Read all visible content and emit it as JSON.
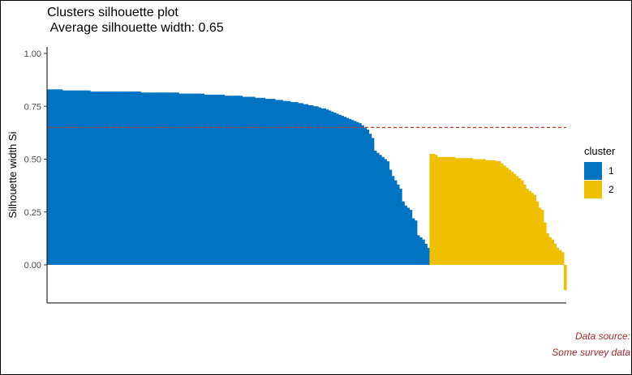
{
  "title_line1": "Clusters silhouette plot",
  "title_line2": " Average silhouette width: 0.65",
  "caption_line1": "Data source:",
  "caption_line2": "Some survey data",
  "caption_color": "#a52a2a",
  "chart_data": {
    "type": "bar",
    "ylabel": "Silhouette width Si",
    "xlabel": "",
    "ylim": [
      -0.2,
      1.0
    ],
    "yticks": [
      0.0,
      0.25,
      0.5,
      0.75,
      1.0
    ],
    "ytick_labels": [
      "0.00",
      "0.25",
      "0.50",
      "0.75",
      "1.00"
    ],
    "average_line": {
      "value": 0.65,
      "color": "#c0392b",
      "style": "dashed"
    },
    "grid": false,
    "legend": {
      "title": "cluster",
      "position": "right",
      "entries": [
        {
          "label": "1",
          "color": "#0073c2"
        },
        {
          "label": "2",
          "color": "#efc000"
        }
      ]
    },
    "series": [
      {
        "name": "1",
        "color": "#0073c2",
        "values": [
          0.83,
          0.83,
          0.83,
          0.83,
          0.83,
          0.83,
          0.825,
          0.825,
          0.825,
          0.825,
          0.825,
          0.825,
          0.825,
          0.825,
          0.825,
          0.825,
          0.825,
          0.82,
          0.82,
          0.82,
          0.82,
          0.82,
          0.82,
          0.82,
          0.82,
          0.82,
          0.82,
          0.82,
          0.82,
          0.82,
          0.82,
          0.82,
          0.82,
          0.82,
          0.82,
          0.82,
          0.82,
          0.815,
          0.815,
          0.815,
          0.815,
          0.815,
          0.815,
          0.815,
          0.815,
          0.815,
          0.815,
          0.815,
          0.815,
          0.815,
          0.815,
          0.815,
          0.81,
          0.81,
          0.81,
          0.81,
          0.81,
          0.81,
          0.81,
          0.81,
          0.81,
          0.81,
          0.805,
          0.805,
          0.805,
          0.805,
          0.805,
          0.805,
          0.805,
          0.805,
          0.8,
          0.8,
          0.8,
          0.8,
          0.8,
          0.8,
          0.8,
          0.795,
          0.795,
          0.795,
          0.795,
          0.795,
          0.79,
          0.79,
          0.79,
          0.79,
          0.785,
          0.785,
          0.785,
          0.785,
          0.78,
          0.78,
          0.78,
          0.775,
          0.775,
          0.775,
          0.77,
          0.77,
          0.77,
          0.765,
          0.765,
          0.76,
          0.76,
          0.755,
          0.755,
          0.75,
          0.75,
          0.745,
          0.74,
          0.74,
          0.735,
          0.73,
          0.725,
          0.72,
          0.715,
          0.71,
          0.705,
          0.7,
          0.695,
          0.69,
          0.685,
          0.68,
          0.675,
          0.67,
          0.66,
          0.65,
          0.64,
          0.62,
          0.6,
          0.54,
          0.53,
          0.52,
          0.51,
          0.5,
          0.49,
          0.45,
          0.42,
          0.4,
          0.38,
          0.36,
          0.3,
          0.28,
          0.27,
          0.26,
          0.22,
          0.21,
          0.14,
          0.13,
          0.12,
          0.1,
          0.08
        ]
      },
      {
        "name": "2",
        "color": "#efc000",
        "values": [
          0.525,
          0.525,
          0.52,
          0.51,
          0.51,
          0.51,
          0.51,
          0.51,
          0.51,
          0.51,
          0.505,
          0.505,
          0.505,
          0.505,
          0.505,
          0.505,
          0.505,
          0.5,
          0.5,
          0.5,
          0.5,
          0.5,
          0.495,
          0.495,
          0.495,
          0.495,
          0.49,
          0.49,
          0.48,
          0.47,
          0.46,
          0.45,
          0.44,
          0.43,
          0.42,
          0.41,
          0.4,
          0.38,
          0.36,
          0.35,
          0.34,
          0.33,
          0.3,
          0.27,
          0.26,
          0.2,
          0.15,
          0.13,
          0.12,
          0.1,
          0.08,
          0.07,
          0.06,
          -0.12
        ]
      }
    ]
  }
}
